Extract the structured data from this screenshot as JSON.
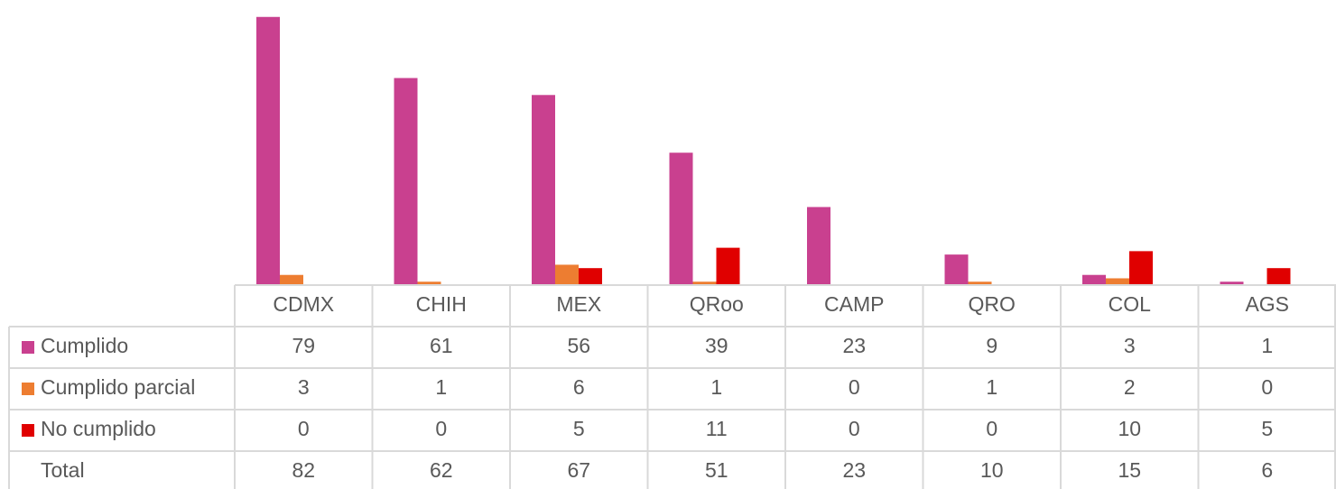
{
  "chart_data": {
    "type": "bar",
    "categories": [
      "CDMX",
      "CHIH",
      "MEX",
      "QRoo",
      "CAMP",
      "QRO",
      "COL",
      "AGS"
    ],
    "series": [
      {
        "name": "Cumplido",
        "color": "#c9408f",
        "values": [
          79,
          61,
          56,
          39,
          23,
          9,
          3,
          1
        ]
      },
      {
        "name": "Cumplido parcial",
        "color": "#ed7d31",
        "values": [
          3,
          1,
          6,
          1,
          0,
          1,
          2,
          0
        ]
      },
      {
        "name": "No cumplido",
        "color": "#e00000",
        "values": [
          0,
          0,
          5,
          11,
          0,
          0,
          10,
          5
        ]
      }
    ],
    "total_label": "Total",
    "totals": [
      82,
      62,
      67,
      51,
      23,
      10,
      15,
      6
    ],
    "ylim": [
      0,
      80
    ]
  }
}
